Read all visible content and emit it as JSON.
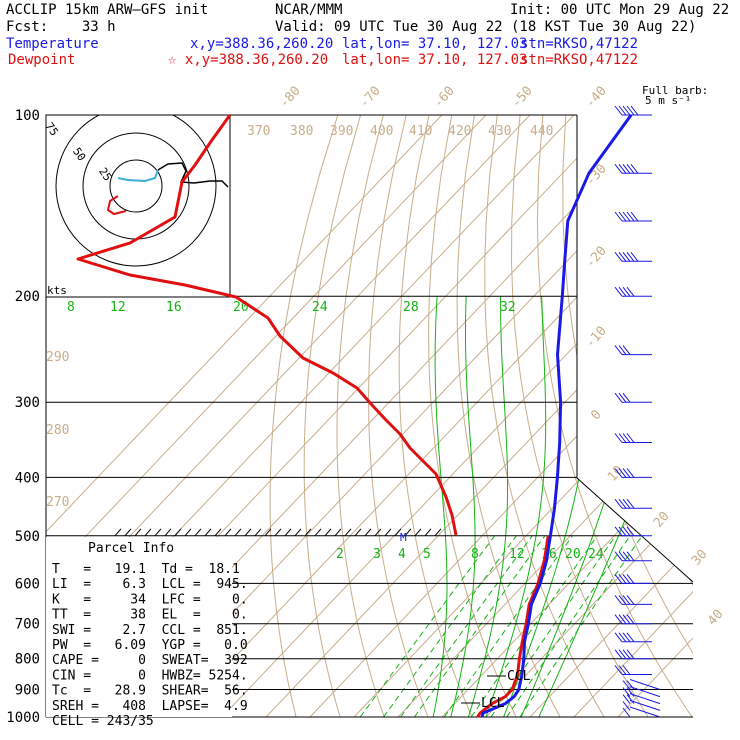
{
  "header": {
    "model": "ACCLIP 15km ARW–GFS init",
    "org": "NCAR/MMM",
    "init": "Init: 00 UTC Mon 29 Aug 22",
    "fcst": "Fcst:    33 h",
    "valid": "Valid: 09 UTC Tue 30 Aug 22 (18 KST Tue 30 Aug 22)",
    "temperature_label": "Temperature",
    "dewpoint_label": "Dewpoint",
    "temp_xy": "x,y=388.36,260.20",
    "dew_xy": "☆ x,y=388.36,260.20",
    "latlon": "lat,lon= 37.10, 127.03",
    "stn": "stn=RKSO,47122"
  },
  "colors": {
    "temperature": "#1a1ae6",
    "dewpoint": "#e01010",
    "isotherm": "#c8ad8a",
    "mixing_ratio": "#14b414",
    "isobar": "#000000"
  },
  "barb_legend": {
    "line1": "Full barb:",
    "line2": "5 m s⁻¹"
  },
  "hodograph": {
    "ring_labels": [
      "75",
      "50",
      "25"
    ],
    "units": "kts"
  },
  "parcel_info": {
    "title": "Parcel Info",
    "rows": [
      "T   =   19.1  Td =  18.1",
      "LI  =    6.3  LCL =  945.",
      "K   =     34  LFC =    0.",
      "TT  =     38  EL  =    0.",
      "SWI =    2.7  CCL =  851.",
      "PW  =   6.09  YGP =   0.0",
      "CAPE =     0  SWEAT=  392",
      "CIN =      0  HWBZ= 5254.",
      "Tc  =   28.9  SHEAR=  56.",
      "SREH =   408  LAPSE=  4.9",
      "CELL = 243/35"
    ]
  },
  "markers": {
    "ccl": "CCL",
    "lcl": "LCL",
    "m": "M"
  },
  "chart_data": {
    "type": "line",
    "title": "",
    "xlabel": "",
    "ylabel": "",
    "pressure_ticks": [
      "100",
      "200",
      "300",
      "400",
      "500",
      "600",
      "700",
      "800",
      "900",
      "1000"
    ],
    "pressure_levels": [
      100,
      200,
      300,
      400,
      500,
      600,
      700,
      800,
      900,
      1000
    ],
    "isotherm_labels": [
      "-80",
      "-70",
      "-60",
      "-50",
      "-40",
      "-30",
      "-20",
      "-10",
      "0",
      "10",
      "20",
      "30",
      "40"
    ],
    "theta_labels": [
      "370",
      "380",
      "390",
      "400",
      "410",
      "420",
      "430",
      "440",
      "290",
      "280",
      "270"
    ],
    "mixing_ratio_labels": [
      "8",
      "12",
      "16",
      "20",
      "24",
      "28",
      "32",
      "2",
      "3",
      "4",
      "5",
      "8",
      "12",
      "16",
      "20",
      "24"
    ],
    "series": [
      {
        "name": "Temperature",
        "pressure": [
          1000,
          985,
          950,
          925,
          900,
          850,
          800,
          750,
          700,
          650,
          600,
          550,
          500,
          450,
          400,
          350,
          300,
          250,
          200,
          175,
          150,
          125,
          100
        ],
        "values": [
          19.1,
          18.5,
          21.5,
          22.0,
          21.5,
          19.0,
          16.0,
          12.5,
          9.5,
          6.0,
          3.5,
          0.0,
          -4.5,
          -9.5,
          -15.5,
          -22.5,
          -31.0,
          -42.0,
          -53.5,
          -60.5,
          -68.5,
          -74.0,
          -77.0
        ]
      },
      {
        "name": "Dewpoint",
        "pressure": [
          1000,
          985,
          950,
          925,
          900,
          850,
          800,
          750,
          700,
          650,
          600,
          550,
          500,
          450,
          400,
          350,
          300,
          250,
          200,
          175,
          150,
          125,
          100
        ],
        "values": [
          18.1,
          17.8,
          18.5,
          20.0,
          20.0,
          18.0,
          15.0,
          12.0,
          9.0,
          5.5,
          3.0,
          -0.5,
          -5.0,
          -11.5,
          -19.5,
          -28.0,
          -38.0,
          -60.0,
          -71.0,
          -102.0,
          -132.0,
          -106.0,
          -92.0
        ]
      }
    ],
    "wind_barbs": {
      "pressure": [
        100,
        125,
        150,
        175,
        200,
        250,
        300,
        350,
        400,
        450,
        500,
        550,
        600,
        650,
        700,
        750,
        800,
        850,
        900,
        925,
        950,
        975,
        1000
      ],
      "speed_ms": [
        25,
        25,
        25,
        25,
        20,
        15,
        15,
        20,
        20,
        20,
        20,
        20,
        20,
        20,
        20,
        20,
        20,
        15,
        10,
        10,
        10,
        5,
        5
      ]
    }
  }
}
